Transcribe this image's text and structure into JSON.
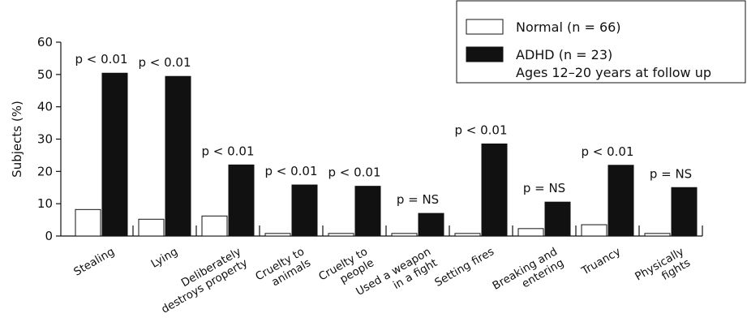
{
  "chart_data": {
    "type": "bar",
    "ylabel": "Subjects (%)",
    "ylim": [
      0,
      60
    ],
    "yticks": [
      0,
      10,
      20,
      30,
      40,
      50,
      60
    ],
    "categories": [
      [
        "Stealing"
      ],
      [
        "Lying"
      ],
      [
        "Deliberately",
        "destroys property"
      ],
      [
        "Cruelty to",
        "animals"
      ],
      [
        "Cruelty to",
        "people"
      ],
      [
        "Used a weapon",
        "in a fight"
      ],
      [
        "Setting fires"
      ],
      [
        "Breaking and",
        "entering"
      ],
      [
        "Truancy"
      ],
      [
        "Physically",
        "fights"
      ]
    ],
    "series": [
      {
        "name": "Normal (n = 66)",
        "color": "#ffffff",
        "values": [
          8.2,
          5.2,
          6.2,
          0.8,
          0.8,
          0.8,
          0.8,
          2.3,
          3.5,
          0.8
        ]
      },
      {
        "name": "ADHD (n = 23)",
        "color": "#111111",
        "values": [
          50.4,
          49.4,
          22,
          15.8,
          15.4,
          7,
          28.5,
          10.5,
          21.9,
          15
        ]
      }
    ],
    "annotations": [
      "p < 0.01",
      "p < 0.01",
      "p < 0.01",
      "p < 0.01",
      "p < 0.01",
      "p = NS",
      "p < 0.01",
      "p = NS",
      "p < 0.01",
      "p = NS"
    ],
    "legend_position": "top-right",
    "legend_note": "Ages 12–20 years at follow up",
    "grid": false
  }
}
